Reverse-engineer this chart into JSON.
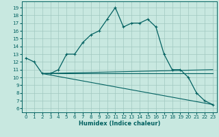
{
  "xlabel": "Humidex (Indice chaleur)",
  "background_color": "#c8e8e0",
  "grid_color": "#a0c8c0",
  "line_color": "#006060",
  "xlim": [
    -0.5,
    23.5
  ],
  "ylim": [
    5.5,
    19.8
  ],
  "yticks": [
    6,
    7,
    8,
    9,
    10,
    11,
    12,
    13,
    14,
    15,
    16,
    17,
    18,
    19
  ],
  "xticks": [
    0,
    1,
    2,
    3,
    4,
    5,
    6,
    7,
    8,
    9,
    10,
    11,
    12,
    13,
    14,
    15,
    16,
    17,
    18,
    19,
    20,
    21,
    22,
    23
  ],
  "series": [
    [
      0,
      12.5
    ],
    [
      1,
      12.0
    ],
    [
      2,
      10.5
    ],
    [
      3,
      10.5
    ],
    [
      4,
      11.0
    ],
    [
      5,
      13.0
    ],
    [
      6,
      13.0
    ],
    [
      7,
      14.5
    ],
    [
      8,
      15.5
    ],
    [
      9,
      16.0
    ],
    [
      10,
      17.5
    ],
    [
      11,
      19.0
    ],
    [
      12,
      16.5
    ],
    [
      13,
      17.0
    ],
    [
      14,
      17.0
    ],
    [
      15,
      17.5
    ],
    [
      16,
      16.5
    ],
    [
      17,
      13.0
    ],
    [
      18,
      11.0
    ],
    [
      19,
      11.0
    ],
    [
      20,
      10.0
    ],
    [
      21,
      8.0
    ],
    [
      22,
      7.0
    ],
    [
      23,
      6.5
    ]
  ],
  "series2": [
    [
      2,
      10.5
    ],
    [
      23,
      11.0
    ]
  ],
  "series3": [
    [
      2,
      10.5
    ],
    [
      23,
      10.5
    ]
  ],
  "series4": [
    [
      2,
      10.5
    ],
    [
      23,
      6.5
    ]
  ]
}
